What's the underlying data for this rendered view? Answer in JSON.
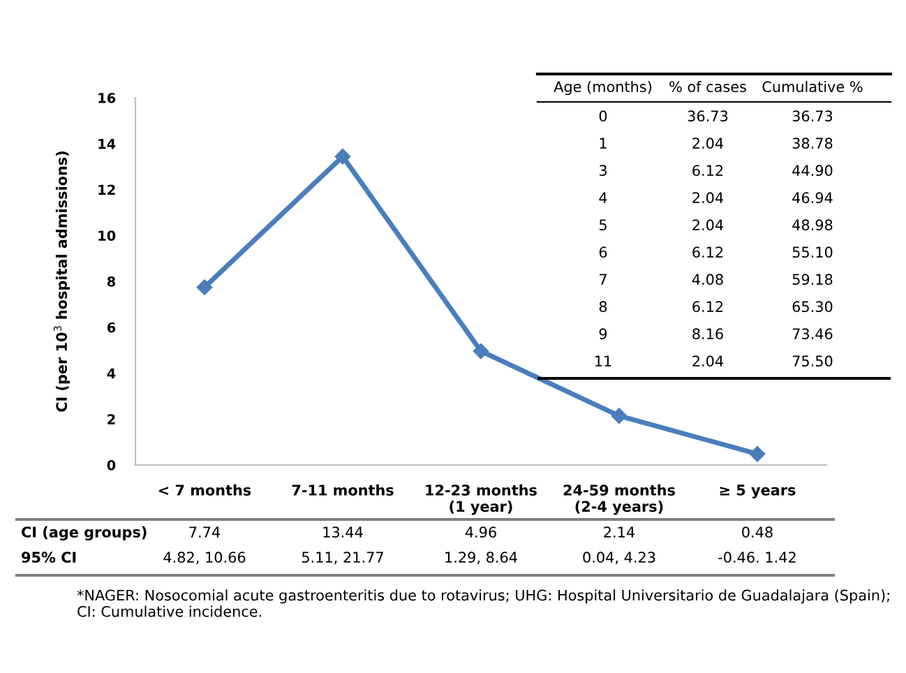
{
  "chart_data": {
    "type": "line",
    "ylabel": "CI (per 10$^{3}$ hospital admissions)",
    "categories": [
      "< 7 months",
      "7-11 months",
      "12-23 months\n(1 year)",
      "24-59 months\n(2-4 years)",
      "≥ 5 years"
    ],
    "values": [
      7.74,
      13.44,
      4.96,
      2.14,
      0.48
    ],
    "color": "#4a7ebb",
    "marker": "diamond",
    "data_labels": true,
    "ylim": [
      0,
      16
    ],
    "yticks": [
      0,
      2,
      4,
      6,
      8,
      10,
      12,
      14,
      16
    ],
    "grid": false,
    "legend": false,
    "annotations": [
      "CI (age groups)",
      "95% CI",
      "4.82, 10.66",
      "5.11, 21.77",
      "1.29, 8.64",
      "0.04, 4.23",
      "-0.46. 1.42",
      "Age (months)",
      "% of cases",
      "Cumulative %",
      "0",
      "36.73",
      "36.73",
      "1",
      "2.04",
      "38.78",
      "3",
      "6.12",
      "44.90",
      "4",
      "2.04",
      "46.94",
      "5",
      "2.04",
      "48.98",
      "6",
      "6.12",
      "55.10",
      "7",
      "4.08",
      "59.18",
      "8",
      "6.12",
      "65.30",
      "9",
      "8.16",
      "73.46",
      "11",
      "2.04",
      "75.50",
      "*NAGER: Nosocomial acute gastroenteritis due to rotavirus; UHG: Hospital Universitario de Guadalajara (Spain); CI: Cumulative incidence."
    ]
  }
}
